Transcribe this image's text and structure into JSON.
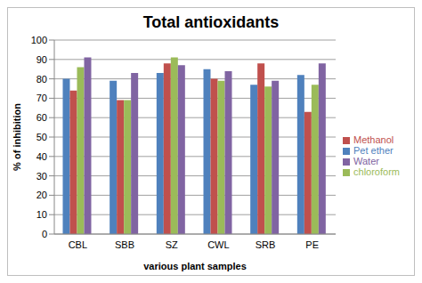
{
  "chart_data": {
    "type": "bar",
    "title": "Total antioxidants",
    "x_label": "various plant samples",
    "y_label": "% of inhibition",
    "categories": [
      "CBL",
      "SBB",
      "SZ",
      "CWL",
      "SRB",
      "PE"
    ],
    "series": [
      {
        "name": "Pet ether",
        "color": "#4f81bd",
        "values": [
          80,
          79,
          83,
          85,
          77,
          82
        ]
      },
      {
        "name": "Methanol",
        "color": "#c0504d",
        "values": [
          74,
          69,
          88,
          80,
          88,
          63
        ]
      },
      {
        "name": "chloroform",
        "color": "#9bbb59",
        "values": [
          86,
          69,
          91,
          79,
          76,
          77
        ]
      },
      {
        "name": "Water",
        "color": "#8064a2",
        "values": [
          91,
          83,
          87,
          84,
          79,
          88
        ]
      }
    ],
    "ylim": [
      0,
      100
    ],
    "yticks": [
      0,
      10,
      20,
      30,
      40,
      50,
      60,
      70,
      80,
      90,
      100
    ],
    "grid": true,
    "legend": "right"
  }
}
